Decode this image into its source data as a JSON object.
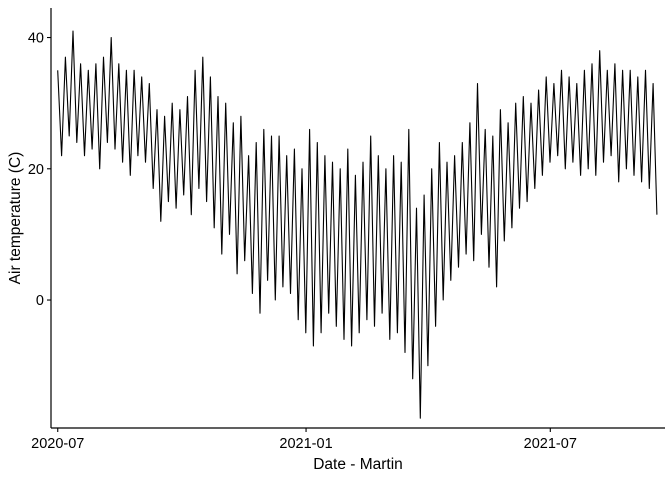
{
  "chart_data": {
    "type": "line",
    "title": "",
    "xlabel": "Date - Martin",
    "ylabel": "Air temperature (C)",
    "xlim": [
      "2020-06-26",
      "2021-09-24"
    ],
    "ylim": [
      -19.5,
      44.5
    ],
    "x_ticks": [
      {
        "value": "2020-07-01",
        "label": "2020-07"
      },
      {
        "value": "2021-01-01",
        "label": "2021-01"
      },
      {
        "value": "2021-07-01",
        "label": "2021-07"
      }
    ],
    "y_ticks": [
      {
        "value": 40,
        "label": "40"
      },
      {
        "value": 20,
        "label": "20"
      },
      {
        "value": 0,
        "label": "0"
      }
    ],
    "grid": false,
    "legend": "none",
    "series": [
      {
        "color": "#000000",
        "sampling": "approx. every 2 days, alternating daily max / daily min",
        "x_start": "2020-07-01",
        "x_end": "2021-09-18",
        "values": [
          35,
          22,
          37,
          25,
          41,
          24,
          36,
          22,
          35,
          23,
          36,
          20,
          37,
          24,
          40,
          23,
          36,
          21,
          35,
          19,
          35,
          22,
          34,
          21,
          33,
          17,
          29,
          12,
          28,
          15,
          30,
          14,
          29,
          16,
          31,
          13,
          35,
          17,
          37,
          15,
          34,
          11,
          31,
          7,
          30,
          10,
          27,
          4,
          28,
          6,
          22,
          1,
          24,
          -2,
          26,
          3,
          25,
          0,
          25,
          2,
          22,
          1,
          23,
          -3,
          20,
          -5,
          26,
          -7,
          24,
          -5,
          22,
          -2,
          21,
          -4,
          20,
          -6,
          23,
          -7,
          19,
          -5,
          21,
          -3,
          25,
          -4,
          22,
          -2,
          20,
          -6,
          22,
          -5,
          21,
          -8,
          26,
          -12,
          14,
          -18,
          16,
          -10,
          20,
          -4,
          24,
          0,
          21,
          3,
          22,
          5,
          24,
          7,
          27,
          6,
          33,
          10,
          26,
          5,
          25,
          2,
          29,
          9,
          27,
          11,
          30,
          14,
          31,
          15,
          30,
          17,
          32,
          19,
          34,
          21,
          33,
          22,
          35,
          20,
          34,
          21,
          33,
          19,
          35,
          20,
          36,
          19,
          38,
          21,
          35,
          22,
          36,
          18,
          35,
          20,
          35,
          19,
          34,
          18,
          35,
          17,
          33,
          13
        ]
      }
    ]
  }
}
